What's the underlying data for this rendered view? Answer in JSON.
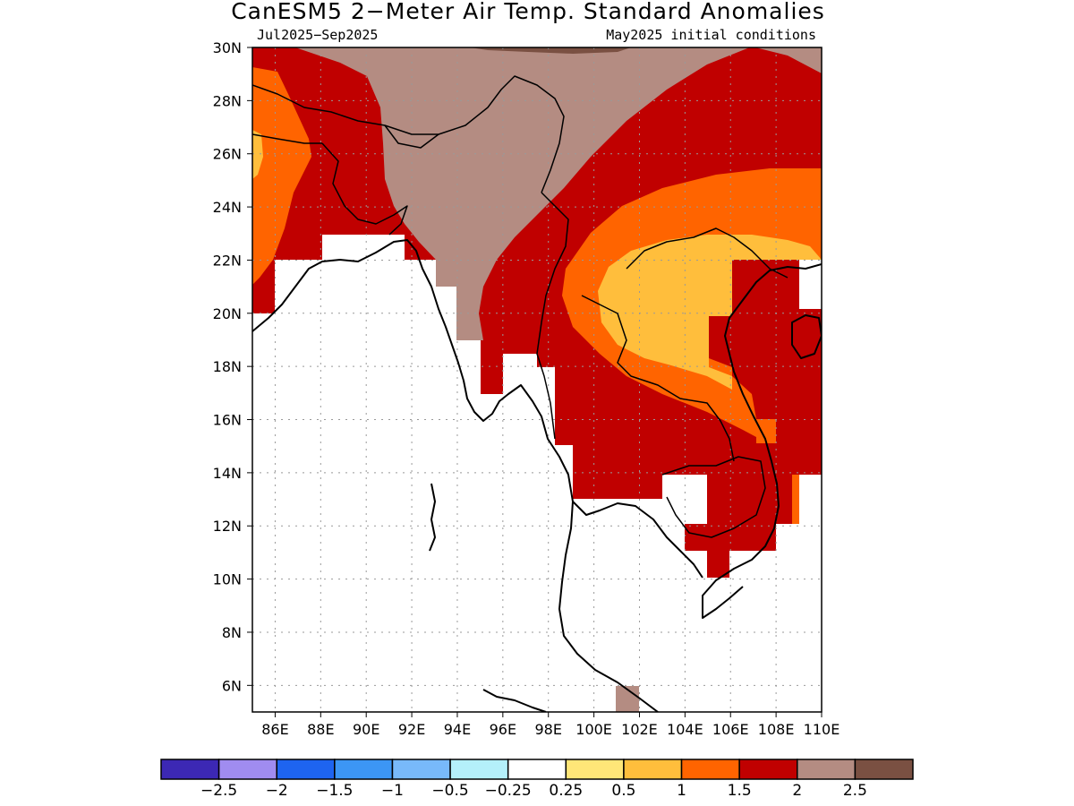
{
  "title": "CanESM5 2−Meter Air Temp. Standard Anomalies",
  "period": "Jul2025−Sep2025",
  "init": "May2025 initial conditions",
  "map": {
    "lon_range": [
      85,
      110
    ],
    "lat_range": [
      5,
      30
    ],
    "lon_ticks": [
      "86E",
      "88E",
      "90E",
      "92E",
      "94E",
      "96E",
      "98E",
      "100E",
      "102E",
      "104E",
      "106E",
      "108E",
      "110E"
    ],
    "lat_ticks": [
      "30N",
      "28N",
      "26N",
      "24N",
      "22N",
      "20N",
      "18N",
      "16N",
      "14N",
      "12N",
      "10N",
      "8N",
      "6N"
    ]
  },
  "colorbar": {
    "colors": [
      "#3c28b4",
      "#a08cf0",
      "#1e64f0",
      "#3c96f5",
      "#78b9fa",
      "#b4f0fa",
      "#ffffff",
      "#ffe678",
      "#ffbe3c",
      "#ff6400",
      "#c00000",
      "#b48c82",
      "#7a5042"
    ],
    "labels": [
      "−2.5",
      "−2",
      "−1.5",
      "−1",
      "−0.5",
      "−0.25",
      "0.25",
      "0.5",
      "1",
      "1.5",
      "2",
      "2.5"
    ]
  },
  "legend_colors": {
    "brown_gt_2": "#b48c82",
    "darkbrown_gt_2_5": "#7a5042",
    "red_1_5_to_2": "#c00000",
    "orange_1_to_1_5": "#ff6400",
    "lightorange_0_5_to_1": "#ffbe3c",
    "yellow_0_25_to_0_5": "#ffe678"
  }
}
